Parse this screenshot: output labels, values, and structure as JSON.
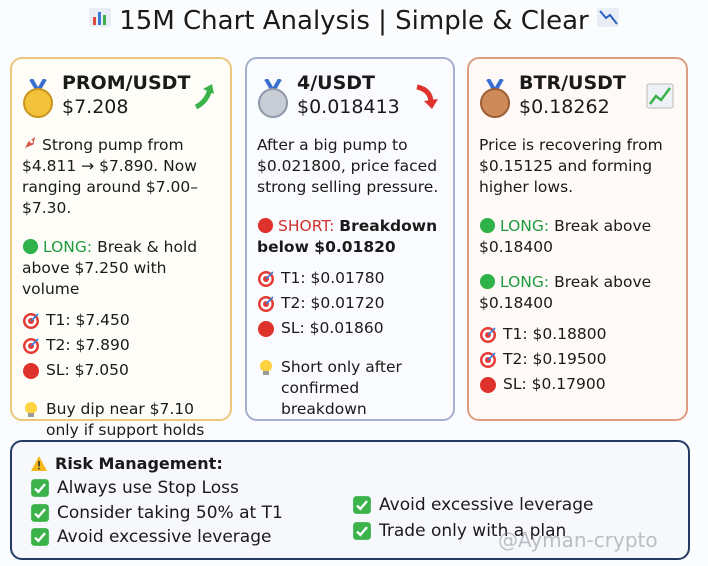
{
  "header": {
    "title": "15M Chart Analysis | Simple & Clear"
  },
  "cards": [
    {
      "title": "PROM/USDT",
      "price": "$7.208",
      "description": "Strong pump from $4.811 → $7.890. Now ranging around $7.00–$7.30.",
      "signals": [
        {
          "label": "LONG:",
          "color": "#1f9a3c",
          "text": "Break & hold above $7.250 with volume"
        }
      ],
      "targets": [
        "T1: $7.450",
        "T2: $7.890",
        "SL: $7.050"
      ],
      "tip": "Buy dip near $7.10 only if support holds"
    },
    {
      "title": "4/USDT",
      "price": "$0.018413",
      "description": "After a big pump to $0.021800, price faced strong selling pressure.",
      "signals": [
        {
          "label": "SHORT:",
          "color": "#d2312b",
          "text": "Breakdown below $0.01820"
        }
      ],
      "targets": [
        "T1: $0.01780",
        "T2: $0.01720",
        "SL: $0.01860"
      ],
      "tip": "Short only after confirmed breakdown"
    },
    {
      "title": "BTR/USDT",
      "price": "$0.18262",
      "description": "Price is recovering from $0.15125 and forming higher lows.",
      "signals": [
        {
          "label": "LONG:",
          "color": "#1f9a3c",
          "text": "Break above $0.18400"
        },
        {
          "label": "LONG:",
          "color": "#1f9a3c",
          "text": "Break above $0.18400"
        }
      ],
      "targets": [
        "T1: $0.18800",
        "T2: $0.19500",
        "SL: $0.17900"
      ]
    }
  ],
  "risk": {
    "title": "Risk Management:",
    "items": [
      "Always use Stop Loss",
      "Consider taking 50% at T1",
      "Avoid excessive leverage",
      "Avoid excessive leverage",
      "Trade only with a plan"
    ]
  },
  "watermark": "@Ayman-crypto"
}
